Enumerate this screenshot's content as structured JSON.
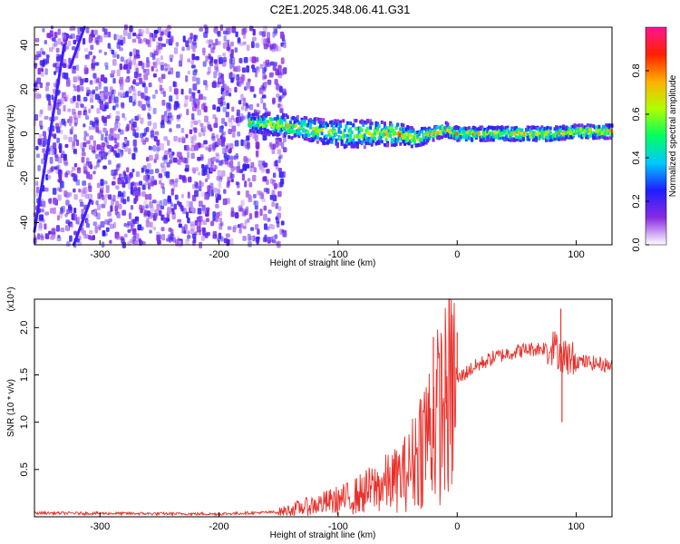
{
  "title": "C2E1.2025.348.06.41.G31",
  "chart_data": [
    {
      "type": "heatmap",
      "name": "spectrogram",
      "xlabel": "Height of straight line (km)",
      "ylabel": "Frequency (Hz)",
      "xlim": [
        -355,
        130
      ],
      "ylim": [
        -50,
        48
      ],
      "xticks": [
        -300,
        -200,
        -100,
        0,
        100
      ],
      "yticks": [
        -40,
        -20,
        0,
        20,
        40
      ],
      "colorbar": {
        "label": "Normalized spectral amplitude",
        "range": [
          0,
          1
        ],
        "ticks": [
          0.0,
          0.2,
          0.4,
          0.6,
          0.8
        ],
        "tick_labels": [
          "0.0",
          "0.2",
          "0.4",
          "0.6",
          "0.8"
        ],
        "colors": [
          "#ffffff",
          "#8a2be2",
          "#1e1eff",
          "#00c8ff",
          "#00ff60",
          "#b0ff00",
          "#ffb000",
          "#ff2000",
          "#ff1493"
        ]
      },
      "noise_region_x": [
        -355,
        -145
      ],
      "signal_track": {
        "x": [
          -175,
          -150,
          -125,
          -100,
          -75,
          -50,
          -35,
          -20,
          -10,
          0,
          20,
          50,
          80,
          100,
          130
        ],
        "center_freq": [
          5,
          4,
          2,
          0,
          0,
          0,
          -2,
          0,
          2,
          0,
          0,
          0,
          0,
          1,
          1
        ],
        "half_width": [
          4,
          5,
          5,
          6,
          6,
          5,
          4,
          3,
          3,
          3,
          3,
          3,
          3,
          3,
          3
        ]
      },
      "interference_lines": [
        {
          "x": [
            -355,
            -330
          ],
          "freq": [
            -44,
            40
          ]
        },
        {
          "x": [
            -325,
            -313
          ],
          "freq": [
            30,
            48
          ]
        },
        {
          "x": [
            -322,
            -308
          ],
          "freq": [
            -50,
            -30
          ]
        }
      ]
    },
    {
      "type": "line",
      "name": "snr",
      "xlabel": "Height of straight line (km)",
      "ylabel": "SNR (10 * v/v)",
      "scale_label": "(x10⁴)",
      "xlim": [
        -355,
        130
      ],
      "ylim": [
        0,
        2.3
      ],
      "xticks": [
        -300,
        -200,
        -100,
        0,
        100
      ],
      "yticks": [
        0.5,
        1.0,
        1.5,
        2.0
      ],
      "ytick_labels": [
        "0.5",
        "1.0",
        "1.5",
        "2.0"
      ],
      "color": "#e8302a",
      "series_envelope": {
        "x": [
          -355,
          -200,
          -150,
          -130,
          -110,
          -90,
          -70,
          -50,
          -40,
          -30,
          -20,
          -10,
          0,
          10,
          20,
          30,
          40,
          50,
          60,
          70,
          80,
          85,
          90,
          100,
          110,
          130
        ],
        "y": [
          0.04,
          0.03,
          0.05,
          0.1,
          0.15,
          0.2,
          0.3,
          0.4,
          0.5,
          0.8,
          1.0,
          1.2,
          1.45,
          1.55,
          1.62,
          1.68,
          1.72,
          1.75,
          1.77,
          1.78,
          1.8,
          1.75,
          1.7,
          1.65,
          1.63,
          1.6
        ]
      },
      "spikes": [
        {
          "x": -20,
          "y": 1.9
        },
        {
          "x": -10,
          "y": 1.55
        },
        {
          "x": 0,
          "y": 1.95
        },
        {
          "x": 87,
          "y": 2.2
        },
        {
          "x": 88,
          "y": 1.0
        }
      ]
    }
  ]
}
